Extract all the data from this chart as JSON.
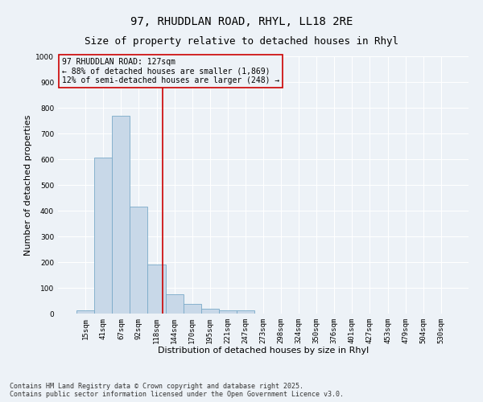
{
  "title_line1": "97, RHUDDLAN ROAD, RHYL, LL18 2RE",
  "title_line2": "Size of property relative to detached houses in Rhyl",
  "xlabel": "Distribution of detached houses by size in Rhyl",
  "ylabel": "Number of detached properties",
  "categories": [
    "15sqm",
    "41sqm",
    "67sqm",
    "92sqm",
    "118sqm",
    "144sqm",
    "170sqm",
    "195sqm",
    "221sqm",
    "247sqm",
    "273sqm",
    "298sqm",
    "324sqm",
    "350sqm",
    "376sqm",
    "401sqm",
    "427sqm",
    "453sqm",
    "479sqm",
    "504sqm",
    "530sqm"
  ],
  "values": [
    12,
    605,
    770,
    415,
    190,
    75,
    38,
    18,
    12,
    12,
    0,
    0,
    0,
    0,
    0,
    0,
    0,
    0,
    0,
    0,
    0
  ],
  "bar_color": "#c8d8e8",
  "bar_edge_color": "#7aaac8",
  "vline_x_index": 4.35,
  "vline_color": "#cc0000",
  "annotation_text": "97 RHUDDLAN ROAD: 127sqm\n← 88% of detached houses are smaller (1,869)\n12% of semi-detached houses are larger (248) →",
  "annotation_box_color": "#cc0000",
  "ylim": [
    0,
    1000
  ],
  "yticks": [
    0,
    100,
    200,
    300,
    400,
    500,
    600,
    700,
    800,
    900,
    1000
  ],
  "background_color": "#edf2f7",
  "grid_color": "#ffffff",
  "footnote": "Contains HM Land Registry data © Crown copyright and database right 2025.\nContains public sector information licensed under the Open Government Licence v3.0.",
  "title_fontsize": 10,
  "subtitle_fontsize": 9,
  "annotation_fontsize": 7,
  "tick_fontsize": 6.5,
  "label_fontsize": 8,
  "footnote_fontsize": 6
}
